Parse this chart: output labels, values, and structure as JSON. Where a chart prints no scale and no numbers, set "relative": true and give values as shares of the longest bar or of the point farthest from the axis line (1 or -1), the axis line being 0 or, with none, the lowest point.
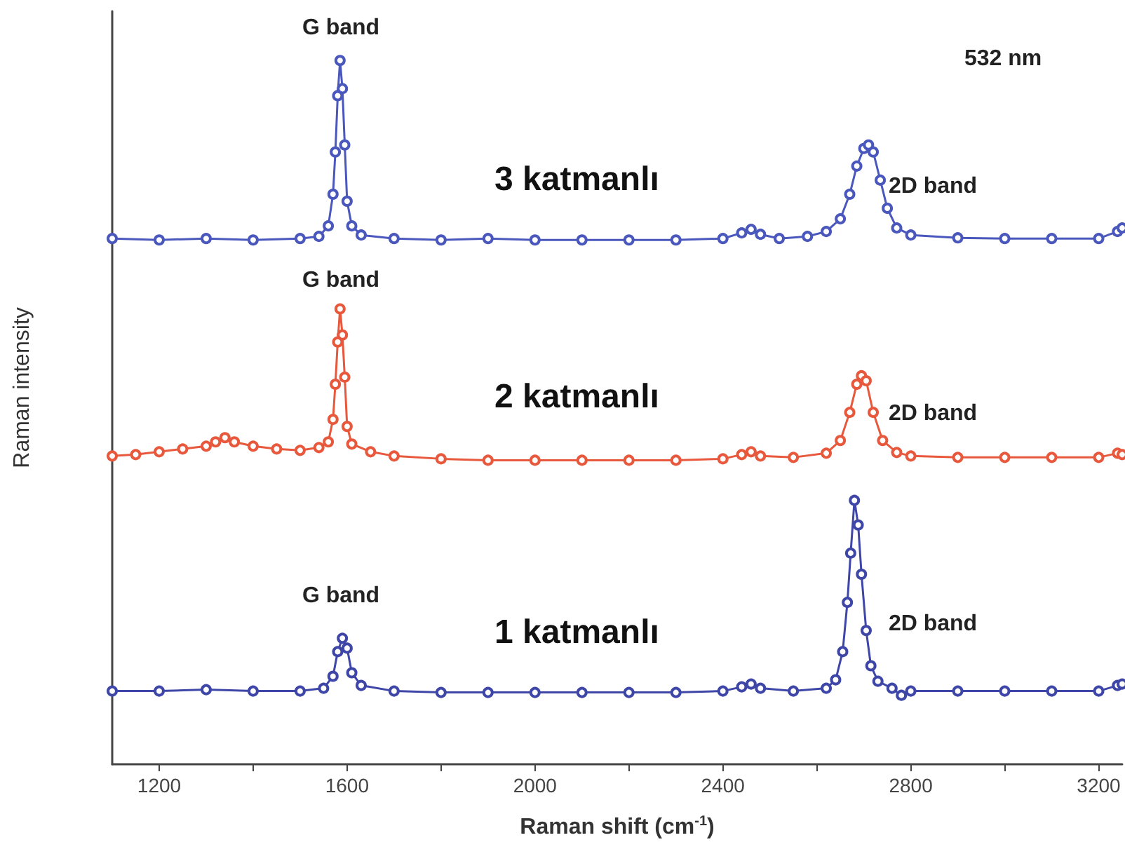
{
  "chart_data": {
    "type": "line",
    "relative": true,
    "xlabel": "Raman shift (cm$^{-1}$)",
    "ylabel": "Raman intensity",
    "marker": "circle",
    "grid": false,
    "legend": false,
    "xlim": [
      1100,
      3250
    ],
    "xticks": [
      1200,
      {
        "value": 1400,
        "label": null
      },
      1600,
      {
        "value": 1800,
        "label": null
      },
      2000,
      {
        "value": 2200,
        "label": null
      },
      2400,
      {
        "value": 2600,
        "label": null
      },
      2800,
      {
        "value": 3000,
        "label": null
      },
      3200
    ],
    "annotations": [
      "G band",
      "G band",
      "G band",
      "2D band",
      "2D band",
      "2D band",
      "532 nm"
    ],
    "series": [
      {
        "name": "3 katmanlı",
        "color": "#4a58bd",
        "x": [
          1100,
          1200,
          1300,
          1400,
          1500,
          1540,
          1560,
          1570,
          1575,
          1580,
          1585,
          1590,
          1595,
          1600,
          1610,
          1630,
          1700,
          1800,
          1900,
          2000,
          2100,
          2200,
          2300,
          2400,
          2440,
          2460,
          2480,
          2520,
          2580,
          2620,
          2650,
          2670,
          2685,
          2700,
          2710,
          2720,
          2735,
          2750,
          2770,
          2800,
          2900,
          3000,
          3100,
          3200,
          3240,
          3250
        ],
        "values": [
          0.747,
          0.745,
          0.747,
          0.745,
          0.747,
          0.75,
          0.765,
          0.81,
          0.87,
          0.95,
          1.0,
          0.96,
          0.88,
          0.8,
          0.765,
          0.752,
          0.747,
          0.745,
          0.747,
          0.745,
          0.745,
          0.745,
          0.745,
          0.747,
          0.755,
          0.76,
          0.753,
          0.747,
          0.75,
          0.757,
          0.775,
          0.81,
          0.85,
          0.875,
          0.88,
          0.87,
          0.83,
          0.79,
          0.762,
          0.752,
          0.748,
          0.747,
          0.747,
          0.747,
          0.757,
          0.762
        ]
      },
      {
        "name": "2 katmanlı",
        "color": "#e8583c",
        "x": [
          1100,
          1150,
          1200,
          1250,
          1300,
          1320,
          1340,
          1360,
          1400,
          1450,
          1500,
          1540,
          1560,
          1570,
          1575,
          1580,
          1585,
          1590,
          1595,
          1600,
          1610,
          1650,
          1700,
          1800,
          1900,
          2000,
          2100,
          2200,
          2300,
          2400,
          2440,
          2460,
          2480,
          2550,
          2620,
          2650,
          2670,
          2685,
          2695,
          2705,
          2720,
          2740,
          2770,
          2800,
          2900,
          3000,
          3100,
          3200,
          3240,
          3250
        ],
        "values": [
          0.438,
          0.44,
          0.444,
          0.448,
          0.452,
          0.458,
          0.464,
          0.458,
          0.452,
          0.448,
          0.446,
          0.45,
          0.458,
          0.49,
          0.54,
          0.6,
          0.647,
          0.61,
          0.55,
          0.48,
          0.455,
          0.444,
          0.438,
          0.434,
          0.432,
          0.432,
          0.432,
          0.432,
          0.432,
          0.434,
          0.44,
          0.444,
          0.438,
          0.436,
          0.442,
          0.46,
          0.5,
          0.54,
          0.552,
          0.545,
          0.5,
          0.46,
          0.443,
          0.438,
          0.436,
          0.436,
          0.436,
          0.436,
          0.442,
          0.44
        ]
      },
      {
        "name": "1 katmanlı",
        "color": "#3e46a8",
        "x": [
          1100,
          1200,
          1300,
          1400,
          1500,
          1550,
          1570,
          1580,
          1590,
          1600,
          1610,
          1630,
          1700,
          1800,
          1900,
          2000,
          2100,
          2200,
          2300,
          2400,
          2440,
          2460,
          2480,
          2550,
          2620,
          2640,
          2655,
          2665,
          2672,
          2680,
          2688,
          2695,
          2705,
          2715,
          2730,
          2760,
          2780,
          2800,
          2900,
          3000,
          3100,
          3200,
          3240,
          3250
        ],
        "values": [
          0.104,
          0.104,
          0.106,
          0.104,
          0.104,
          0.108,
          0.125,
          0.16,
          0.179,
          0.165,
          0.13,
          0.112,
          0.104,
          0.102,
          0.102,
          0.102,
          0.102,
          0.102,
          0.102,
          0.104,
          0.11,
          0.114,
          0.108,
          0.104,
          0.108,
          0.12,
          0.16,
          0.23,
          0.3,
          0.375,
          0.34,
          0.27,
          0.19,
          0.14,
          0.118,
          0.108,
          0.098,
          0.104,
          0.104,
          0.104,
          0.104,
          0.104,
          0.112,
          0.114
        ]
      }
    ]
  }
}
